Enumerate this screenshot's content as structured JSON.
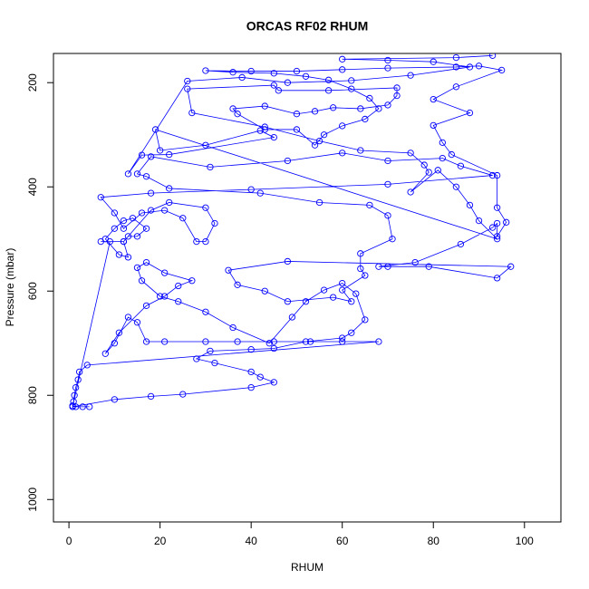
{
  "chart_data": {
    "type": "line",
    "title": "ORCAS RF02 RHUM",
    "xlabel": "RHUM",
    "ylabel": "Pressure (mbar)",
    "x": [
      4.5,
      3,
      1.5,
      0.8,
      1,
      1.2,
      1.5,
      2,
      2.3,
      4,
      68,
      60,
      53,
      45,
      37,
      30,
      21,
      17,
      15,
      13,
      10,
      8,
      11,
      17,
      21,
      24,
      27,
      21,
      17,
      15,
      16,
      20,
      24,
      30,
      36,
      44,
      49,
      52,
      56,
      60,
      63,
      65,
      62,
      60,
      52,
      45,
      40,
      31,
      28,
      32,
      40,
      42,
      45,
      40,
      25,
      18,
      10,
      0.8,
      9,
      7,
      12,
      13,
      15,
      17,
      14,
      12,
      10,
      8,
      11,
      13,
      12,
      18,
      22,
      30,
      32,
      30,
      28,
      25,
      21,
      16,
      12,
      10,
      7,
      18,
      40,
      70,
      93,
      86,
      82,
      70,
      60,
      48,
      31,
      18,
      15,
      17,
      22,
      42,
      55,
      66,
      70,
      71,
      64,
      64,
      65,
      60,
      62,
      58,
      48,
      43,
      37,
      35,
      48,
      97,
      94,
      79,
      70,
      68,
      76,
      86,
      93,
      94,
      94,
      96,
      94,
      94,
      84,
      82,
      80,
      88,
      80,
      85,
      95,
      90,
      85,
      70,
      60,
      50,
      40,
      30,
      36,
      45,
      52,
      57,
      62,
      66,
      68,
      65,
      60,
      56,
      54,
      50,
      43,
      37,
      36,
      43,
      50,
      54,
      58,
      64,
      70,
      72,
      72,
      57,
      46,
      45,
      26,
      27,
      43,
      55,
      64,
      75,
      78,
      79,
      75,
      81,
      85,
      88,
      90,
      94,
      19,
      20,
      30,
      42,
      45,
      22,
      16,
      13,
      26,
      38,
      48,
      62,
      75,
      88,
      80,
      70,
      60,
      85,
      93
    ],
    "series": [
      {
        "color": "#0000ff",
        "values": [
          822,
          822,
          822,
          820,
          812,
          800,
          785,
          770,
          755,
          742,
          697,
          697,
          697,
          697,
          697,
          697,
          697,
          697,
          660,
          650,
          700,
          720,
          680,
          628,
          610,
          590,
          580,
          565,
          545,
          555,
          580,
          610,
          620,
          640,
          670,
          700,
          650,
          620,
          598,
          585,
          605,
          655,
          680,
          690,
          697,
          710,
          712,
          715,
          730,
          738,
          755,
          765,
          775,
          785,
          798,
          802,
          808,
          822,
          505,
          505,
          505,
          495,
          495,
          480,
          460,
          465,
          480,
          500,
          530,
          535,
          505,
          445,
          430,
          440,
          470,
          505,
          505,
          460,
          445,
          450,
          480,
          450,
          420,
          412,
          405,
          395,
          378,
          360,
          345,
          350,
          335,
          350,
          362,
          342,
          375,
          380,
          403,
          412,
          430,
          435,
          455,
          500,
          528,
          557,
          570,
          598,
          620,
          612,
          620,
          600,
          588,
          560,
          543,
          553,
          575,
          553,
          553,
          553,
          545,
          510,
          478,
          470,
          495,
          468,
          440,
          378,
          338,
          315,
          282,
          258,
          232,
          208,
          176,
          168,
          170,
          172,
          175,
          178,
          178,
          177,
          180,
          182,
          188,
          195,
          212,
          230,
          250,
          270,
          283,
          300,
          320,
          290,
          290,
          260,
          250,
          245,
          260,
          255,
          248,
          250,
          243,
          225,
          210,
          215,
          215,
          205,
          212,
          258,
          285,
          312,
          330,
          335,
          358,
          372,
          410,
          368,
          400,
          435,
          465,
          500,
          290,
          330,
          320,
          292,
          305,
          338,
          339,
          375,
          197,
          190,
          200,
          196,
          186,
          170,
          160,
          157,
          155,
          152,
          148
        ]
      }
    ],
    "xlim": [
      -3.4,
      108
    ],
    "ylim": [
      1043,
      144
    ],
    "xticks": [
      0,
      20,
      40,
      60,
      80,
      100
    ],
    "yticks": [
      200,
      400,
      600,
      800,
      1000
    ]
  }
}
